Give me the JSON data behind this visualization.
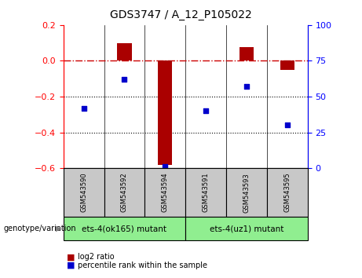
{
  "title": "GDS3747 / A_12_P105022",
  "samples": [
    "GSM543590",
    "GSM543592",
    "GSM543594",
    "GSM543591",
    "GSM543593",
    "GSM543595"
  ],
  "log2_ratio": [
    0.0,
    0.1,
    -0.58,
    0.0,
    0.075,
    -0.05
  ],
  "percentile_rank": [
    42,
    62,
    1,
    40,
    57,
    30
  ],
  "ylim_left": [
    -0.6,
    0.2
  ],
  "ylim_right": [
    0,
    100
  ],
  "bar_color": "#aa0000",
  "dot_color": "#0000cc",
  "hline_color": "#cc0000",
  "sample_box_color": "#c8c8c8",
  "group1_color": "#90EE90",
  "group2_color": "#90EE90",
  "group1_label": "ets-4(ok165) mutant",
  "group2_label": "ets-4(uz1) mutant",
  "genotype_label": "genotype/variation",
  "legend1": "log2 ratio",
  "legend2": "percentile rank within the sample",
  "left_yticks": [
    -0.6,
    -0.4,
    -0.2,
    0.0,
    0.2
  ],
  "right_yticks": [
    0,
    25,
    50,
    75,
    100
  ]
}
